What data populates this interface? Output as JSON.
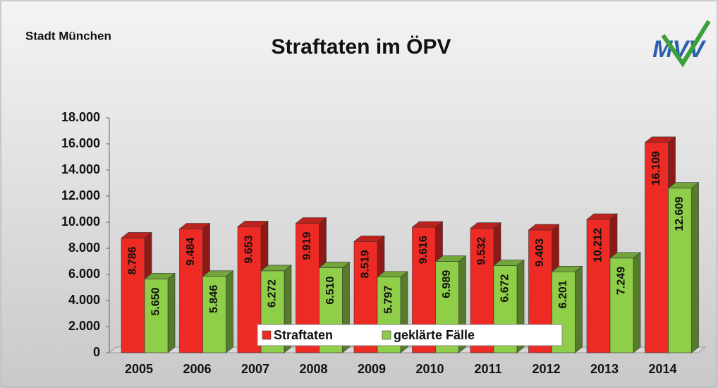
{
  "chart_data": {
    "type": "bar3d",
    "title": "Straftaten im ÖPV",
    "subtitle": "Stadt München",
    "logo": "MVV",
    "categories": [
      "2005",
      "2006",
      "2007",
      "2008",
      "2009",
      "2010",
      "2011",
      "2012",
      "2013",
      "2014"
    ],
    "series": [
      {
        "name": "Straftaten",
        "color": "#ee2a24",
        "values": [
          8786,
          9484,
          9653,
          9919,
          8519,
          9616,
          9532,
          9403,
          10212,
          16109
        ],
        "value_labels": [
          "8.786",
          "9.484",
          "9.653",
          "9.919",
          "8.519",
          "9.616",
          "9.532",
          "9.403",
          "10.212",
          "16.109"
        ]
      },
      {
        "name": "geklärte Fälle",
        "color": "#8fce48",
        "values": [
          5650,
          5846,
          6272,
          6510,
          5797,
          6989,
          6672,
          6201,
          7249,
          12609
        ],
        "value_labels": [
          "5.650",
          "5.846",
          "6.272",
          "6.510",
          "5.797",
          "6.989",
          "6.672",
          "6.201",
          "7.249",
          "12.609"
        ]
      }
    ],
    "ylim": [
      0,
      18000
    ],
    "yticks": [
      0,
      {
        "value": 2000,
        "label": "2.000"
      },
      {
        "value": 4000,
        "label": "4.000"
      },
      {
        "value": 6000,
        "label": "6.000"
      },
      {
        "value": 8000,
        "label": "8.000"
      },
      {
        "value": 10000,
        "label": "10.000"
      },
      {
        "value": 12000,
        "label": "12.000"
      },
      {
        "value": 14000,
        "label": "14.000"
      },
      {
        "value": 16000,
        "label": "16.000"
      },
      {
        "value": 18000,
        "label": "18.000"
      }
    ],
    "legend": "bottom"
  }
}
